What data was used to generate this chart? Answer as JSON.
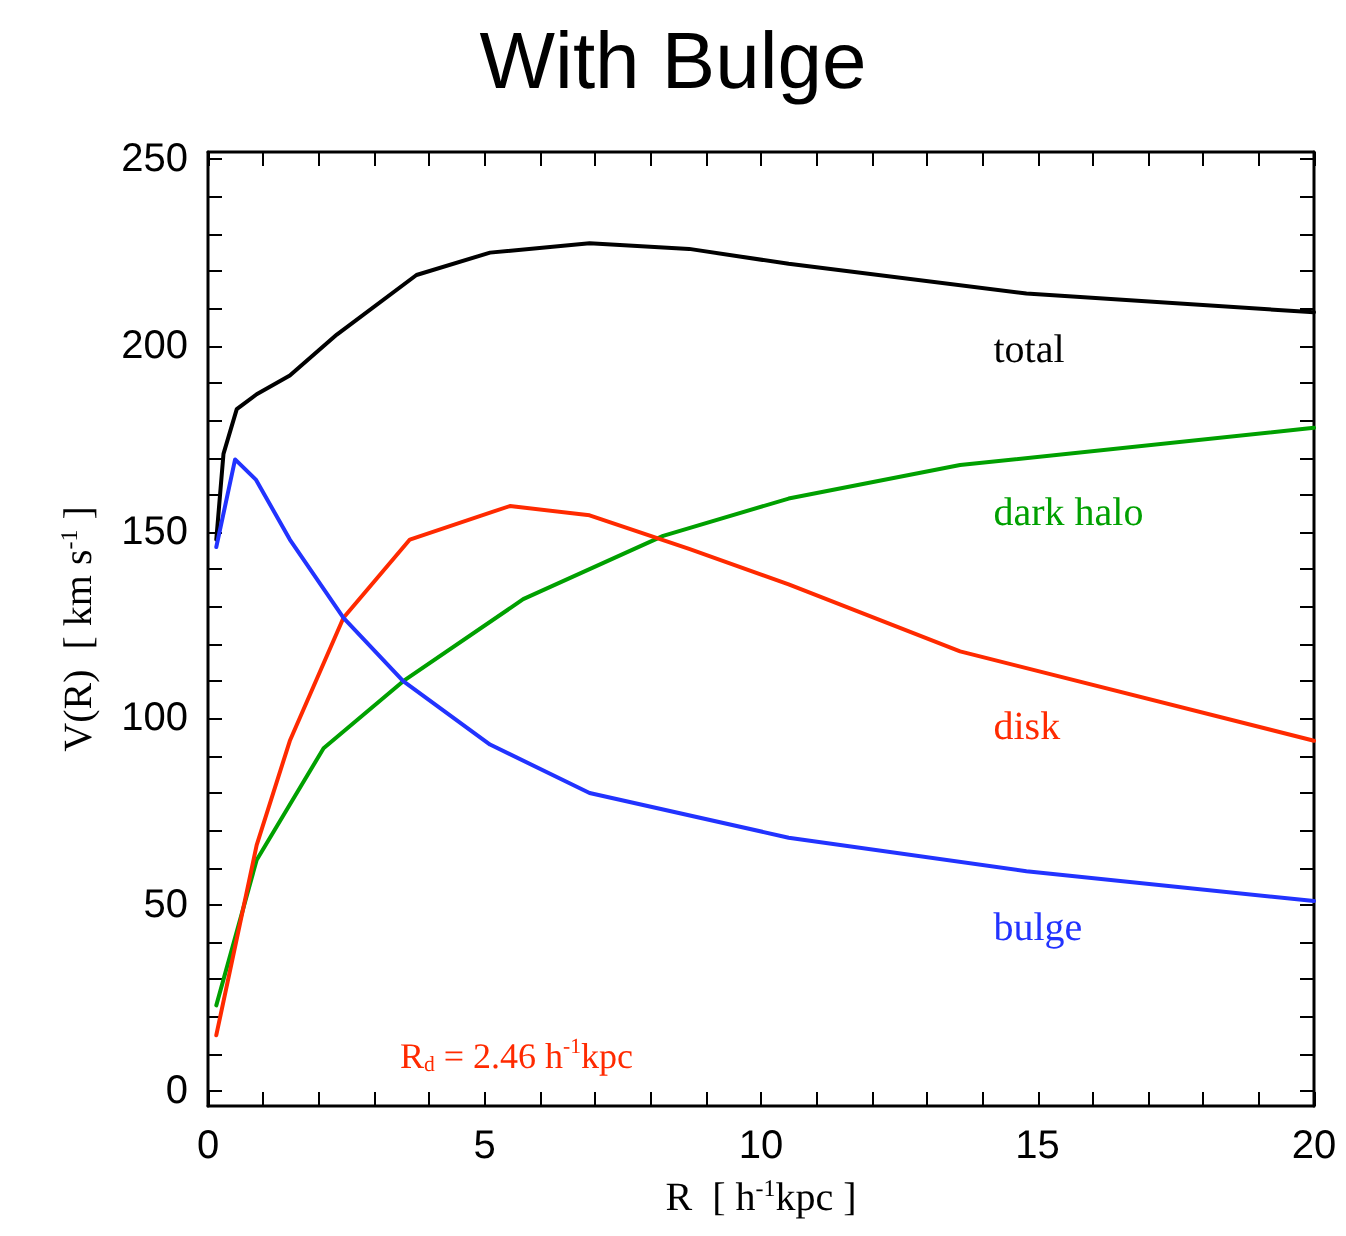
{
  "chart_data": {
    "type": "line",
    "title": "With Bulge",
    "xlabel": "R  [ h$^{-1}$kpc ]",
    "ylabel": "V(R)  [ km s$^{-1}$ ]",
    "xlim": [
      0,
      20
    ],
    "ylim": [
      -4,
      252
    ],
    "xticks": [
      0,
      {
        "value": 1,
        "label": null
      },
      {
        "value": 2,
        "label": null
      },
      {
        "value": 3,
        "label": null
      },
      {
        "value": 4,
        "label": null
      },
      5,
      {
        "value": 6,
        "label": null
      },
      {
        "value": 7,
        "label": null
      },
      {
        "value": 8,
        "label": null
      },
      {
        "value": 9,
        "label": null
      },
      10,
      {
        "value": 11,
        "label": null
      },
      {
        "value": 12,
        "label": null
      },
      {
        "value": 13,
        "label": null
      },
      {
        "value": 14,
        "label": null
      },
      15,
      {
        "value": 16,
        "label": null
      },
      {
        "value": 17,
        "label": null
      },
      {
        "value": 18,
        "label": null
      },
      {
        "value": 19,
        "label": null
      },
      20
    ],
    "yticks": [
      0,
      {
        "value": 10,
        "label": null
      },
      {
        "value": 20,
        "label": null
      },
      {
        "value": 30,
        "label": null
      },
      {
        "value": 40,
        "label": null
      },
      50,
      {
        "value": 60,
        "label": null
      },
      {
        "value": 70,
        "label": null
      },
      {
        "value": 80,
        "label": null
      },
      {
        "value": 90,
        "label": null
      },
      100,
      {
        "value": 110,
        "label": null
      },
      {
        "value": 120,
        "label": null
      },
      {
        "value": 130,
        "label": null
      },
      {
        "value": 140,
        "label": null
      },
      150,
      {
        "value": 160,
        "label": null
      },
      {
        "value": 170,
        "label": null
      },
      {
        "value": 180,
        "label": null
      },
      {
        "value": 190,
        "label": null
      },
      200,
      {
        "value": 210,
        "label": null
      },
      {
        "value": 220,
        "label": null
      },
      {
        "value": 230,
        "label": null
      },
      {
        "value": 240,
        "label": null
      },
      250
    ],
    "grid": false,
    "legend": false,
    "marker": "none",
    "line_style": "solid",
    "series": [
      {
        "name": "total",
        "color": "#000000",
        "x": [
          0.15,
          0.28,
          0.52,
          0.88,
          1.48,
          2.33,
          3.77,
          5.1,
          6.9,
          8.7,
          10.5,
          14.8,
          20
        ],
        "values": [
          148,
          171,
          183,
          187,
          192,
          203,
          219,
          225,
          227.5,
          226,
          222,
          214,
          209
        ]
      },
      {
        "name": "dark halo",
        "color": "#00a000",
        "x": [
          0.15,
          0.88,
          2.09,
          3.53,
          5.7,
          8.23,
          10.5,
          13.6,
          20
        ],
        "values": [
          23,
          62,
          92,
          110,
          132,
          149,
          159,
          168,
          178
        ]
      },
      {
        "name": "disk",
        "color": "#ff2a00",
        "x": [
          0.15,
          0.88,
          1.48,
          2.45,
          3.65,
          5.46,
          6.9,
          8.7,
          10.5,
          13.6,
          20
        ],
        "values": [
          15,
          66,
          94,
          127,
          148,
          157,
          154.5,
          145.5,
          136,
          118,
          94
        ]
      },
      {
        "name": "bulge",
        "color": "#2233ff",
        "x": [
          0.15,
          0.49,
          0.87,
          1.48,
          2.45,
          3.53,
          5.1,
          6.9,
          10.5,
          14.8,
          20
        ],
        "values": [
          146,
          169.5,
          164,
          148,
          127,
          110,
          93,
          80,
          68,
          59,
          51
        ]
      }
    ],
    "annotations": [
      "R$_{d}$ = 2.46 h$^{-1}$kpc"
    ]
  }
}
